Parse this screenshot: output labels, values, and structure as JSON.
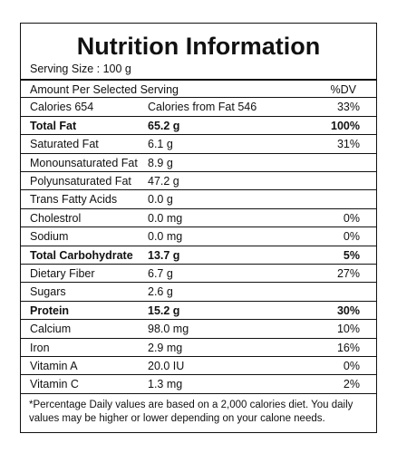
{
  "header": {
    "title": "Nutrition Information",
    "serving_size": "Serving Size : 100 g"
  },
  "table": {
    "header": {
      "label": "Amount Per Selected Serving",
      "dv": "%DV"
    },
    "rows": [
      {
        "label": "Calories 654",
        "amount": "Calories from Fat 546",
        "dv": "33%"
      },
      {
        "label": "Total Fat",
        "amount": "65.2 g",
        "dv": "100%",
        "bold": true
      },
      {
        "label": "Saturated Fat",
        "amount": "6.1 g",
        "dv": "31%"
      },
      {
        "label": "Monounsaturated Fat",
        "amount": "8.9 g"
      },
      {
        "label": "Polyunsaturated Fat",
        "amount": "47.2 g"
      },
      {
        "label": "Trans Fatty Acids",
        "amount": "0.0 g"
      },
      {
        "label": "Cholestrol",
        "amount": "0.0 mg",
        "dv": "0%"
      },
      {
        "label": "Sodium",
        "amount": "0.0 mg",
        "dv": "0%"
      },
      {
        "label": "Total Carbohydrate",
        "amount": "13.7 g",
        "dv": "5%",
        "bold": true
      },
      {
        "label": "Dietary Fiber",
        "amount": "6.7 g",
        "dv": "27%"
      },
      {
        "label": "Sugars",
        "amount": "2.6 g"
      },
      {
        "label": "Protein",
        "amount": "15.2 g",
        "dv": "30%",
        "bold": true
      },
      {
        "label": "Calcium",
        "amount": "98.0 mg",
        "dv": "10%"
      },
      {
        "label": "Iron",
        "amount": "2.9 mg",
        "dv": "16%"
      },
      {
        "label": "Vitamin A",
        "amount": "20.0 IU",
        "dv": "0%"
      },
      {
        "label": "Vitamin C",
        "amount": "1.3 mg",
        "dv": "2%"
      }
    ]
  },
  "footnote": "*Percentage Daily values are based on a 2,000 calories diet. You daily values may be higher or lower depending on your calone needs."
}
